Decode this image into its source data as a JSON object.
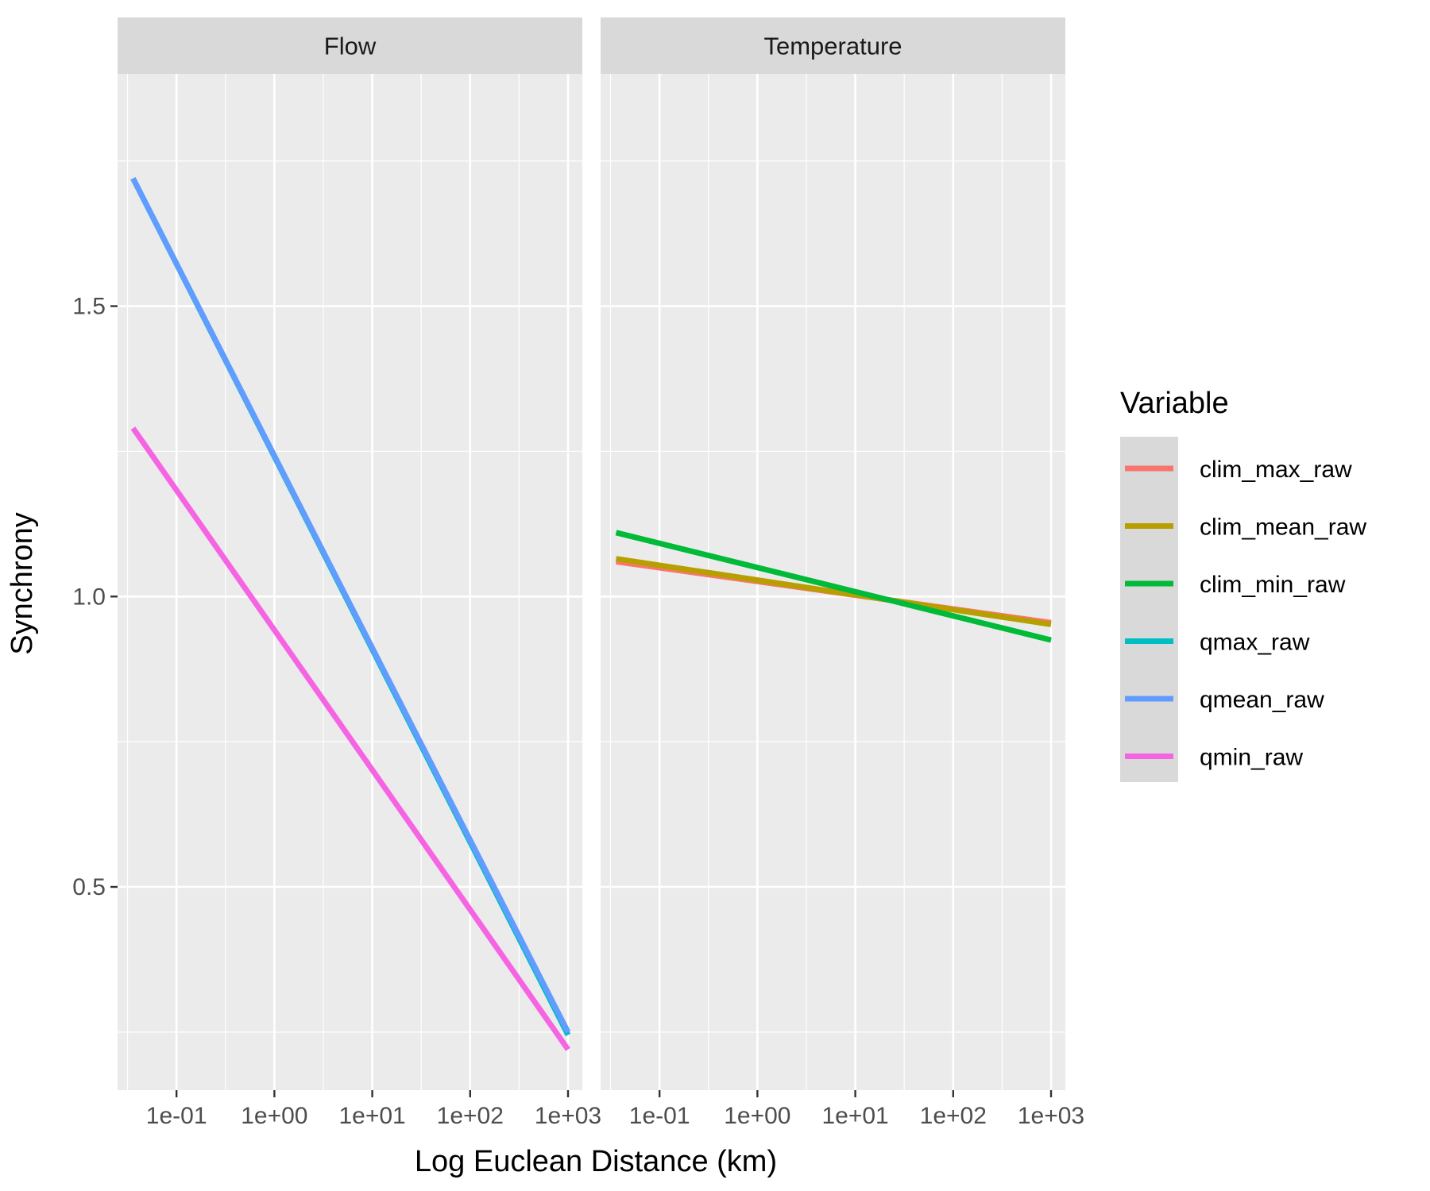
{
  "chart_data": {
    "type": "line",
    "x_scale": "log10",
    "xlabel": "Log Euclean Distance (km)",
    "ylabel": "Synchrony",
    "xlim": [
      0.025,
      1400
    ],
    "ylim": [
      0.15,
      1.9
    ],
    "x_ticks": [
      {
        "value": 0.1,
        "label": "1e-01"
      },
      {
        "value": 1,
        "label": "1e+00"
      },
      {
        "value": 10,
        "label": "1e+01"
      },
      {
        "value": 100,
        "label": "1e+02"
      },
      {
        "value": 1000,
        "label": "1e+03"
      }
    ],
    "y_ticks": [
      {
        "value": 0.5,
        "label": "0.5"
      },
      {
        "value": 1.0,
        "label": "1.0"
      },
      {
        "value": 1.5,
        "label": "1.5"
      }
    ],
    "y_minor": [
      0.25,
      0.75,
      1.25,
      1.75
    ],
    "grid": true,
    "panels": [
      {
        "title": "Flow",
        "series": [
          {
            "name": "qmin_raw",
            "color": "#F564E3",
            "x": [
              0.036,
              1000
            ],
            "y": [
              1.29,
              0.22
            ]
          },
          {
            "name": "qmax_raw",
            "color": "#00BFC4",
            "x": [
              0.036,
              1000
            ],
            "y": [
              1.72,
              0.245
            ]
          },
          {
            "name": "qmean_raw",
            "color": "#619CFF",
            "x": [
              0.036,
              1000
            ],
            "y": [
              1.72,
              0.25
            ]
          }
        ]
      },
      {
        "title": "Temperature",
        "series": [
          {
            "name": "clim_max_raw",
            "color": "#F8766D",
            "x": [
              0.036,
              1000
            ],
            "y": [
              1.06,
              0.955
            ]
          },
          {
            "name": "clim_mean_raw",
            "color": "#B79F00",
            "x": [
              0.036,
              1000
            ],
            "y": [
              1.065,
              0.952
            ]
          },
          {
            "name": "clim_min_raw",
            "color": "#00BA38",
            "x": [
              0.036,
              1000
            ],
            "y": [
              1.11,
              0.925
            ]
          }
        ]
      }
    ],
    "legend": {
      "title": "Variable",
      "position": "right",
      "entries": [
        {
          "label": "clim_max_raw",
          "color": "#F8766D"
        },
        {
          "label": "clim_mean_raw",
          "color": "#B79F00"
        },
        {
          "label": "clim_min_raw",
          "color": "#00BA38"
        },
        {
          "label": "qmax_raw",
          "color": "#00BFC4"
        },
        {
          "label": "qmean_raw",
          "color": "#619CFF"
        },
        {
          "label": "qmin_raw",
          "color": "#F564E3"
        }
      ]
    }
  }
}
